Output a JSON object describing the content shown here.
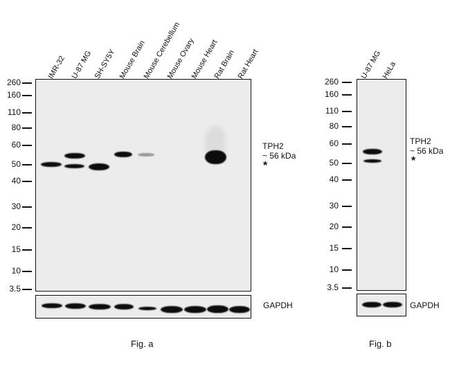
{
  "figure_a": {
    "lanes": [
      "IMR-32",
      "U-87 MG",
      "SH-SY5Y",
      "Mouse Brain",
      "Mouse Cerebellum",
      "Mouse Ovary",
      "Mouse Heart",
      "Rat Brain",
      "Rat Heart"
    ],
    "markers": [
      "260",
      "160",
      "110",
      "80",
      "60",
      "50",
      "40",
      "30",
      "20",
      "15",
      "10",
      "3.5"
    ],
    "target_label": "TPH2",
    "target_size": "~ 56 kDa",
    "nonspecific_mark": "*",
    "loading_control": "GAPDH",
    "caption": "Fig. a"
  },
  "figure_b": {
    "lanes": [
      "U-87 MG",
      "HeLa"
    ],
    "markers": [
      "260",
      "160",
      "110",
      "80",
      "60",
      "50",
      "40",
      "30",
      "20",
      "15",
      "10",
      "3.5"
    ],
    "target_label": "TPH2",
    "target_size": "~ 56 kDa",
    "nonspecific_mark": "*",
    "loading_control": "GAPDH",
    "caption": "Fig. b"
  }
}
